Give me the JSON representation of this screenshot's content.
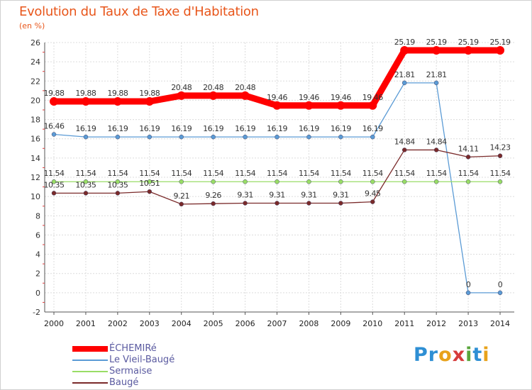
{
  "chart_data": {
    "type": "line",
    "title": "Evolution du Taux de Taxe d'Habitation",
    "ylabel": "(en %)",
    "xlabel": "",
    "ylim": [
      -2,
      26
    ],
    "yticks": [
      -2,
      0,
      2,
      4,
      6,
      8,
      10,
      12,
      14,
      16,
      18,
      20,
      22,
      24,
      26
    ],
    "categories": [
      "2000",
      "2001",
      "2002",
      "2003",
      "2004",
      "2005",
      "2006",
      "2007",
      "2008",
      "2009",
      "2010",
      "2011",
      "2012",
      "2013",
      "2014"
    ],
    "grid": true,
    "legend_position": "bottom-left",
    "series": [
      {
        "name": "ÉCHEMIRé",
        "color": "#ff0000",
        "emphasis": "thick",
        "values": [
          19.88,
          19.88,
          19.88,
          19.88,
          20.48,
          20.48,
          20.48,
          19.46,
          19.46,
          19.46,
          19.46,
          25.19,
          25.19,
          25.19,
          25.19
        ],
        "labels": [
          "19.88",
          "19.88",
          "19.88",
          "19.88",
          "20.48",
          "20.48",
          "20.48",
          "19.46",
          "19.46",
          "19.46",
          "19.46",
          "25.19",
          "25.19",
          "25.19",
          "25.19"
        ]
      },
      {
        "name": "Le Vieil-Baugé",
        "color": "#5b9bd5",
        "emphasis": "normal",
        "values": [
          16.46,
          16.19,
          16.19,
          16.19,
          16.19,
          16.19,
          16.19,
          16.19,
          16.19,
          16.19,
          16.19,
          21.81,
          21.81,
          0,
          0
        ],
        "labels": [
          "16.46",
          "16.19",
          "16.19",
          "16.19",
          "16.19",
          "16.19",
          "16.19",
          "16.19",
          "16.19",
          "16.19",
          "16.19",
          "21.81",
          "21.81",
          "0",
          "0"
        ]
      },
      {
        "name": "Sermaise",
        "color": "#99dd66",
        "emphasis": "normal",
        "values": [
          11.54,
          11.54,
          11.54,
          11.54,
          11.54,
          11.54,
          11.54,
          11.54,
          11.54,
          11.54,
          11.54,
          11.54,
          11.54,
          11.54,
          11.54
        ],
        "labels": [
          "11.54",
          "11.54",
          "11.54",
          "11.54",
          "11.54",
          "11.54",
          "11.54",
          "11.54",
          "11.54",
          "11.54",
          "11.54",
          "11.54",
          "11.54",
          "11.54",
          "11.54"
        ]
      },
      {
        "name": "Baugé",
        "color": "#7a2a2a",
        "emphasis": "normal",
        "values": [
          10.35,
          10.35,
          10.35,
          10.51,
          9.21,
          9.26,
          9.31,
          9.31,
          9.31,
          9.31,
          9.45,
          14.84,
          14.84,
          14.11,
          14.23
        ],
        "labels": [
          "10.35",
          "10.35",
          "10.35",
          "10.51",
          "9.21",
          "9.26",
          "9.31",
          "9.31",
          "9.31",
          "9.31",
          "9.45",
          "14.84",
          "14.84",
          "14.11",
          "14.23"
        ]
      }
    ]
  },
  "logo": {
    "text": "Proxiti",
    "letters": [
      {
        "ch": "P",
        "color": "#2e8fd4"
      },
      {
        "ch": "r",
        "color": "#2e8fd4"
      },
      {
        "ch": "o",
        "color": "#e8a21b"
      },
      {
        "ch": "x",
        "color": "#d63b3b"
      },
      {
        "ch": "i",
        "color": "#5aa63c"
      },
      {
        "ch": "t",
        "color": "#2e8fd4"
      },
      {
        "ch": "i",
        "color": "#e8a21b"
      }
    ]
  }
}
